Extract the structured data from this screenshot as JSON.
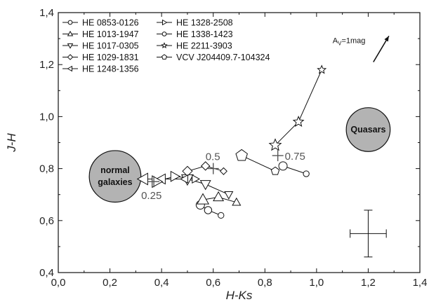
{
  "chart_data": {
    "type": "scatter",
    "title": "",
    "xlabel": "H-Ks",
    "ylabel": "J-H",
    "xlim": [
      0.0,
      1.4
    ],
    "ylim": [
      0.4,
      1.4
    ],
    "x_ticks": [
      "0,0",
      "0,2",
      "0,4",
      "0,6",
      "0,8",
      "1,0",
      "1,2",
      "1,4"
    ],
    "y_ticks": [
      "0,4",
      "0,6",
      "0,8",
      "1,0",
      "1,2",
      "1,4"
    ],
    "x_tick_values": [
      0.0,
      0.2,
      0.4,
      0.6,
      0.8,
      1.0,
      1.2,
      1.4
    ],
    "y_tick_values": [
      0.4,
      0.6,
      0.8,
      1.0,
      1.2,
      1.4
    ],
    "grid": false,
    "legend_position": "top-left",
    "series": [
      {
        "name": "HE 0853-0126",
        "marker": "circle",
        "points": [
          [
            0.55,
            0.66
          ],
          [
            0.58,
            0.64
          ],
          [
            0.63,
            0.62
          ]
        ]
      },
      {
        "name": "HE 1013-1947",
        "marker": "triangle-up",
        "points": [
          [
            0.56,
            0.68
          ],
          [
            0.62,
            0.69
          ],
          [
            0.69,
            0.67
          ]
        ]
      },
      {
        "name": "HE 1017-0305",
        "marker": "triangle-down",
        "points": [
          [
            0.5,
            0.76
          ],
          [
            0.57,
            0.74
          ],
          [
            0.66,
            0.7
          ]
        ]
      },
      {
        "name": "HE 1029-1831",
        "marker": "diamond",
        "points": [
          [
            0.5,
            0.79
          ],
          [
            0.57,
            0.81
          ],
          [
            0.64,
            0.79
          ]
        ]
      },
      {
        "name": "HE 1248-1356",
        "marker": "triangle-left",
        "points": [
          [
            0.33,
            0.76
          ],
          [
            0.4,
            0.76
          ],
          [
            0.49,
            0.76
          ]
        ]
      },
      {
        "name": "HE 1328-2508",
        "marker": "triangle-right",
        "points": [
          [
            0.38,
            0.75
          ],
          [
            0.45,
            0.77
          ],
          [
            0.53,
            0.76
          ]
        ]
      },
      {
        "name": "HE 1338-1423",
        "marker": "circle",
        "points": [
          [
            0.87,
            0.81
          ],
          [
            0.96,
            0.78
          ]
        ]
      },
      {
        "name": "HE 2211-3903",
        "marker": "star",
        "points": [
          [
            0.84,
            0.89
          ],
          [
            0.93,
            0.98
          ],
          [
            1.02,
            1.18
          ]
        ]
      },
      {
        "name": "VCV J204409.7-104324",
        "marker": "pentagon",
        "points": [
          [
            0.71,
            0.85
          ],
          [
            0.84,
            0.79
          ]
        ]
      }
    ],
    "annotations": [
      {
        "text": "0.5",
        "x": 0.6,
        "y": 0.8,
        "marker": "plus"
      },
      {
        "text": "0.75",
        "x": 0.85,
        "y": 0.85,
        "marker": "plus"
      },
      {
        "text": "0.25",
        "x": 0.37,
        "y": 0.75,
        "marker": "plus"
      },
      {
        "text": "normal galaxies",
        "lines": [
          "normal",
          "galaxies"
        ],
        "x": 0.22,
        "y": 0.77,
        "kind": "region",
        "radius": 0.1
      },
      {
        "text": "Quasars",
        "x": 1.2,
        "y": 0.95,
        "kind": "region",
        "radius": 0.085
      },
      {
        "text": "AV=1mag",
        "main": "A",
        "sub": "V",
        "rest": "=1mag",
        "kind": "reddening-vector",
        "from": [
          1.22,
          1.21
        ],
        "to": [
          1.28,
          1.31
        ]
      }
    ],
    "error_bar": {
      "x": 1.2,
      "y": 0.55,
      "xerr": 0.07,
      "yerr": 0.09
    }
  }
}
